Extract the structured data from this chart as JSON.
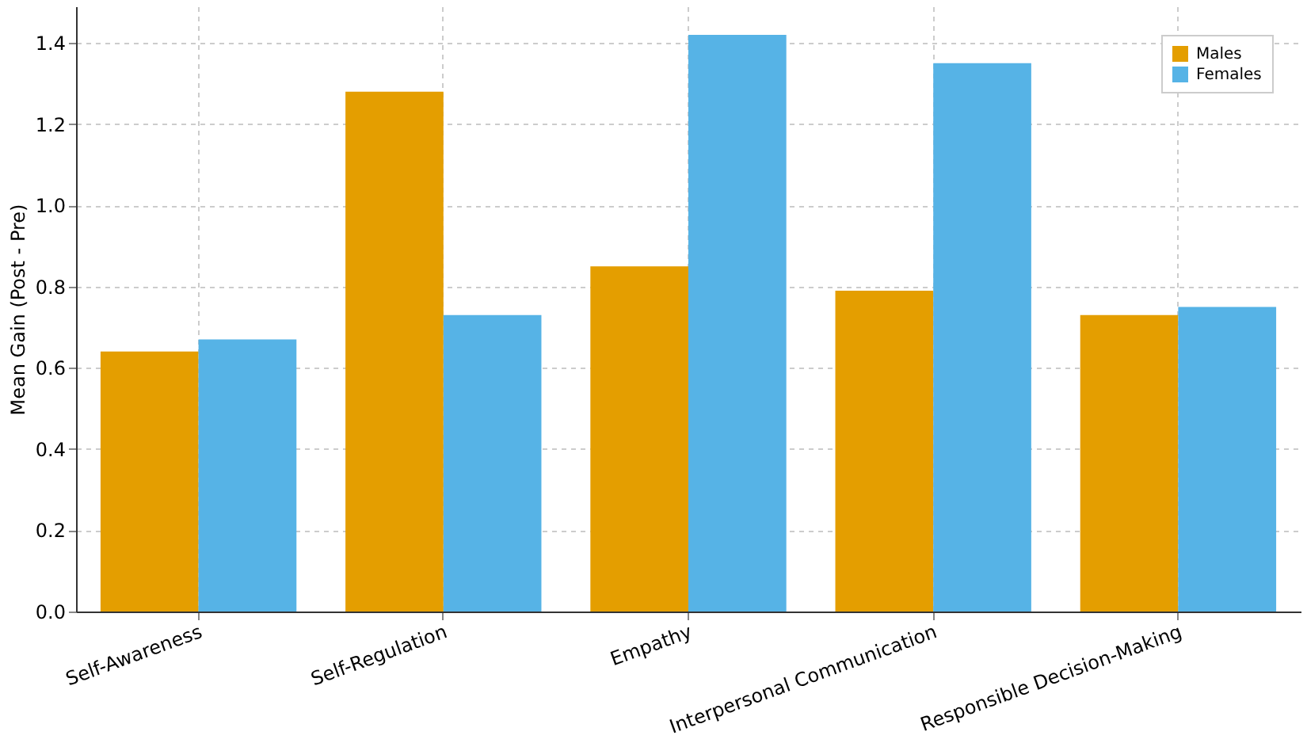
{
  "chart_data": {
    "type": "bar",
    "ylabel": "Mean Gain (Post - Pre)",
    "categories": [
      "Self-Awareness",
      "Self-Regulation",
      "Empathy",
      "Interpersonal Communication",
      "Responsible Decision-Making"
    ],
    "series": [
      {
        "name": "Males",
        "color": "#e49e00",
        "values": [
          0.64,
          1.28,
          0.85,
          0.79,
          0.73
        ]
      },
      {
        "name": "Females",
        "color": "#56b3e6",
        "values": [
          0.67,
          0.73,
          1.42,
          1.35,
          0.75
        ]
      }
    ],
    "ylim": [
      0,
      1.49
    ],
    "yticks": [
      {
        "value": 0,
        "label": "0.0"
      },
      0.2,
      0.4,
      0.6,
      0.8,
      {
        "value": 1,
        "label": "1.0"
      },
      1.2,
      1.4
    ],
    "grid": true,
    "legend": "top right"
  }
}
